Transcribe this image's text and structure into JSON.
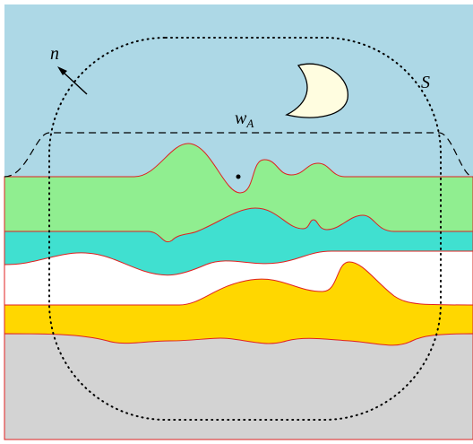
{
  "labels": {
    "normal": "n",
    "surface": "S",
    "window": "w",
    "window_subscript": "A"
  }
}
